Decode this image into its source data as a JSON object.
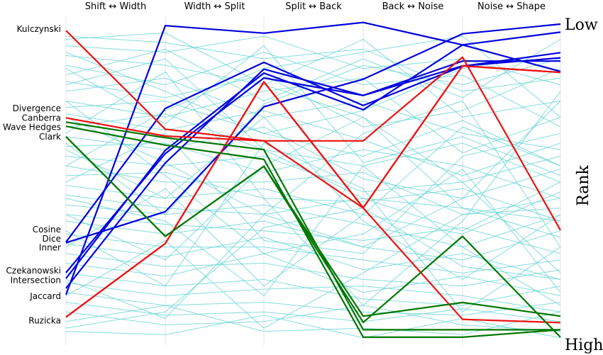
{
  "chart_data": {
    "type": "line",
    "subtype": "parallel-coordinates",
    "axes": [
      "Shift ↔ Width",
      "Width ↔ Split",
      "Split ↔ Back",
      "Back ↔ Noise",
      "Noise ↔ Shape"
    ],
    "rank_axis": {
      "label": "Rank",
      "low_label": "Low",
      "high_label": "High",
      "range": [
        0,
        1
      ]
    },
    "row_labels": [
      {
        "text": "Kulczynski",
        "rank": 0.028
      },
      {
        "text": "Divergence",
        "rank": 0.273
      },
      {
        "text": "Canberra",
        "rank": 0.302
      },
      {
        "text": "Wave Hedges",
        "rank": 0.331
      },
      {
        "text": "Clark",
        "rank": 0.36
      },
      {
        "text": "Cosine",
        "rank": 0.646
      },
      {
        "text": "Dice",
        "rank": 0.675
      },
      {
        "text": "Inner",
        "rank": 0.702
      },
      {
        "text": "Czekanowski",
        "rank": 0.773
      },
      {
        "text": "Intersection",
        "rank": 0.802
      },
      {
        "text": "Jaccard",
        "rank": 0.851
      },
      {
        "text": "Ruzicka",
        "rank": 0.927
      }
    ],
    "colors": {
      "blue": "#0000dd",
      "red": "#ee1111",
      "green": "#007700",
      "background_lines": "#6fd6d6",
      "axis_lines": "#e4e4e4"
    },
    "series": [
      {
        "color": "blue",
        "values": [
          0.847,
          0.018,
          0.041,
          0.008,
          0.077,
          0.159
        ]
      },
      {
        "color": "blue",
        "values": [
          0.687,
          0.591,
          0.268,
          0.183,
          0.043,
          0.013
        ]
      },
      {
        "color": "blue",
        "values": [
          0.685,
          0.273,
          0.131,
          0.264,
          0.143,
          0.101
        ]
      },
      {
        "color": "blue",
        "values": [
          0.797,
          0.402,
          0.164,
          0.277,
          0.077,
          0.038
        ]
      },
      {
        "color": "blue",
        "values": [
          0.827,
          0.441,
          0.152,
          0.233,
          0.142,
          0.117
        ]
      },
      {
        "color": "blue",
        "values": [
          0.779,
          0.412,
          0.179,
          0.233,
          0.127,
          0.127
        ]
      },
      {
        "color": "red",
        "values": [
          0.033,
          0.337,
          0.373,
          0.373,
          0.115,
          0.648
        ]
      },
      {
        "color": "red",
        "values": [
          0.302,
          0.358,
          0.373,
          0.58,
          0.923,
          0.933
        ]
      },
      {
        "color": "red",
        "values": [
          0.916,
          0.689,
          0.191,
          0.579,
          0.142,
          0.162
        ]
      },
      {
        "color": "red",
        "values": [
          0.916,
          0.689,
          0.191,
          0.579,
          0.142,
          0.162
        ]
      },
      {
        "color": "green",
        "values": [
          0.315,
          0.363,
          0.4,
          0.955,
          0.955,
          0.955
        ]
      },
      {
        "color": "green",
        "values": [
          0.328,
          0.386,
          0.43,
          0.978,
          0.978,
          0.955
        ]
      },
      {
        "color": "green",
        "values": [
          0.36,
          0.667,
          0.451,
          0.932,
          0.667,
          0.978
        ]
      },
      {
        "color": "green",
        "values": [
          0.36,
          0.667,
          0.451,
          0.913,
          0.871,
          0.913
        ]
      }
    ],
    "background_lines": [
      [
        0.05,
        0.07,
        0.12,
        0.09,
        0.22,
        0.18
      ],
      [
        0.08,
        0.1,
        0.05,
        0.15,
        0.12,
        0.2
      ],
      [
        0.11,
        0.14,
        0.2,
        0.06,
        0.3,
        0.25
      ],
      [
        0.14,
        0.2,
        0.1,
        0.2,
        0.17,
        0.33
      ],
      [
        0.17,
        0.09,
        0.25,
        0.12,
        0.24,
        0.06
      ],
      [
        0.19,
        0.24,
        0.17,
        0.33,
        0.28,
        0.15
      ],
      [
        0.22,
        0.18,
        0.3,
        0.25,
        0.35,
        0.4
      ],
      [
        0.25,
        0.3,
        0.22,
        0.18,
        0.41,
        0.3
      ],
      [
        0.27,
        0.25,
        0.35,
        0.42,
        0.31,
        0.45
      ],
      [
        0.29,
        0.34,
        0.28,
        0.37,
        0.48,
        0.38
      ],
      [
        0.33,
        0.29,
        0.4,
        0.45,
        0.38,
        0.5
      ],
      [
        0.36,
        0.4,
        0.33,
        0.49,
        0.55,
        0.46
      ],
      [
        0.39,
        0.38,
        0.47,
        0.4,
        0.45,
        0.55
      ],
      [
        0.42,
        0.45,
        0.42,
        0.53,
        0.5,
        0.42
      ],
      [
        0.45,
        0.5,
        0.5,
        0.47,
        0.6,
        0.58
      ],
      [
        0.48,
        0.47,
        0.55,
        0.56,
        0.52,
        0.62
      ],
      [
        0.51,
        0.55,
        0.52,
        0.6,
        0.66,
        0.53
      ],
      [
        0.54,
        0.58,
        0.6,
        0.55,
        0.58,
        0.67
      ],
      [
        0.57,
        0.6,
        0.57,
        0.63,
        0.7,
        0.6
      ],
      [
        0.6,
        0.63,
        0.65,
        0.68,
        0.64,
        0.72
      ],
      [
        0.62,
        0.66,
        0.62,
        0.7,
        0.74,
        0.65
      ],
      [
        0.66,
        0.7,
        0.7,
        0.74,
        0.78,
        0.74
      ],
      [
        0.69,
        0.73,
        0.67,
        0.77,
        0.72,
        0.8
      ],
      [
        0.72,
        0.76,
        0.75,
        0.8,
        0.82,
        0.77
      ],
      [
        0.75,
        0.79,
        0.72,
        0.84,
        0.79,
        0.85
      ],
      [
        0.78,
        0.82,
        0.8,
        0.86,
        0.88,
        0.82
      ],
      [
        0.81,
        0.85,
        0.83,
        0.82,
        0.85,
        0.9
      ],
      [
        0.84,
        0.88,
        0.87,
        0.9,
        0.91,
        0.87
      ],
      [
        0.87,
        0.91,
        0.9,
        0.93,
        0.89,
        0.93
      ],
      [
        0.9,
        0.94,
        0.93,
        0.88,
        0.94,
        0.96
      ],
      [
        0.93,
        0.88,
        0.96,
        0.95,
        0.97,
        0.9
      ],
      [
        0.96,
        0.97,
        0.91,
        0.98,
        0.92,
        0.98
      ],
      [
        0.1,
        0.22,
        0.35,
        0.28,
        0.15,
        0.1
      ],
      [
        0.2,
        0.12,
        0.4,
        0.55,
        0.65,
        0.5
      ],
      [
        0.3,
        0.44,
        0.6,
        0.35,
        0.25,
        0.7
      ],
      [
        0.4,
        0.55,
        0.3,
        0.62,
        0.8,
        0.6
      ],
      [
        0.5,
        0.35,
        0.68,
        0.72,
        0.42,
        0.35
      ],
      [
        0.6,
        0.74,
        0.45,
        0.3,
        0.5,
        0.78
      ],
      [
        0.7,
        0.52,
        0.82,
        0.6,
        0.33,
        0.45
      ],
      [
        0.8,
        0.92,
        0.6,
        0.7,
        0.55,
        0.25
      ],
      [
        0.45,
        0.28,
        0.15,
        0.1,
        0.05,
        0.3
      ],
      [
        0.55,
        0.62,
        0.85,
        0.45,
        0.7,
        0.88
      ],
      [
        0.35,
        0.16,
        0.55,
        0.88,
        0.62,
        0.22
      ],
      [
        0.65,
        0.82,
        0.38,
        0.52,
        0.9,
        0.7
      ],
      [
        0.25,
        0.48,
        0.72,
        0.66,
        0.46,
        0.84
      ],
      [
        0.15,
        0.32,
        0.08,
        0.44,
        0.36,
        0.48
      ],
      [
        0.85,
        0.68,
        0.95,
        0.78,
        0.6,
        0.55
      ],
      [
        0.06,
        0.04,
        0.2,
        0.3,
        0.58,
        0.62
      ],
      [
        0.95,
        0.9,
        0.64,
        0.58,
        0.76,
        0.8
      ],
      [
        0.38,
        0.6,
        0.26,
        0.14,
        0.2,
        0.12
      ]
    ]
  }
}
